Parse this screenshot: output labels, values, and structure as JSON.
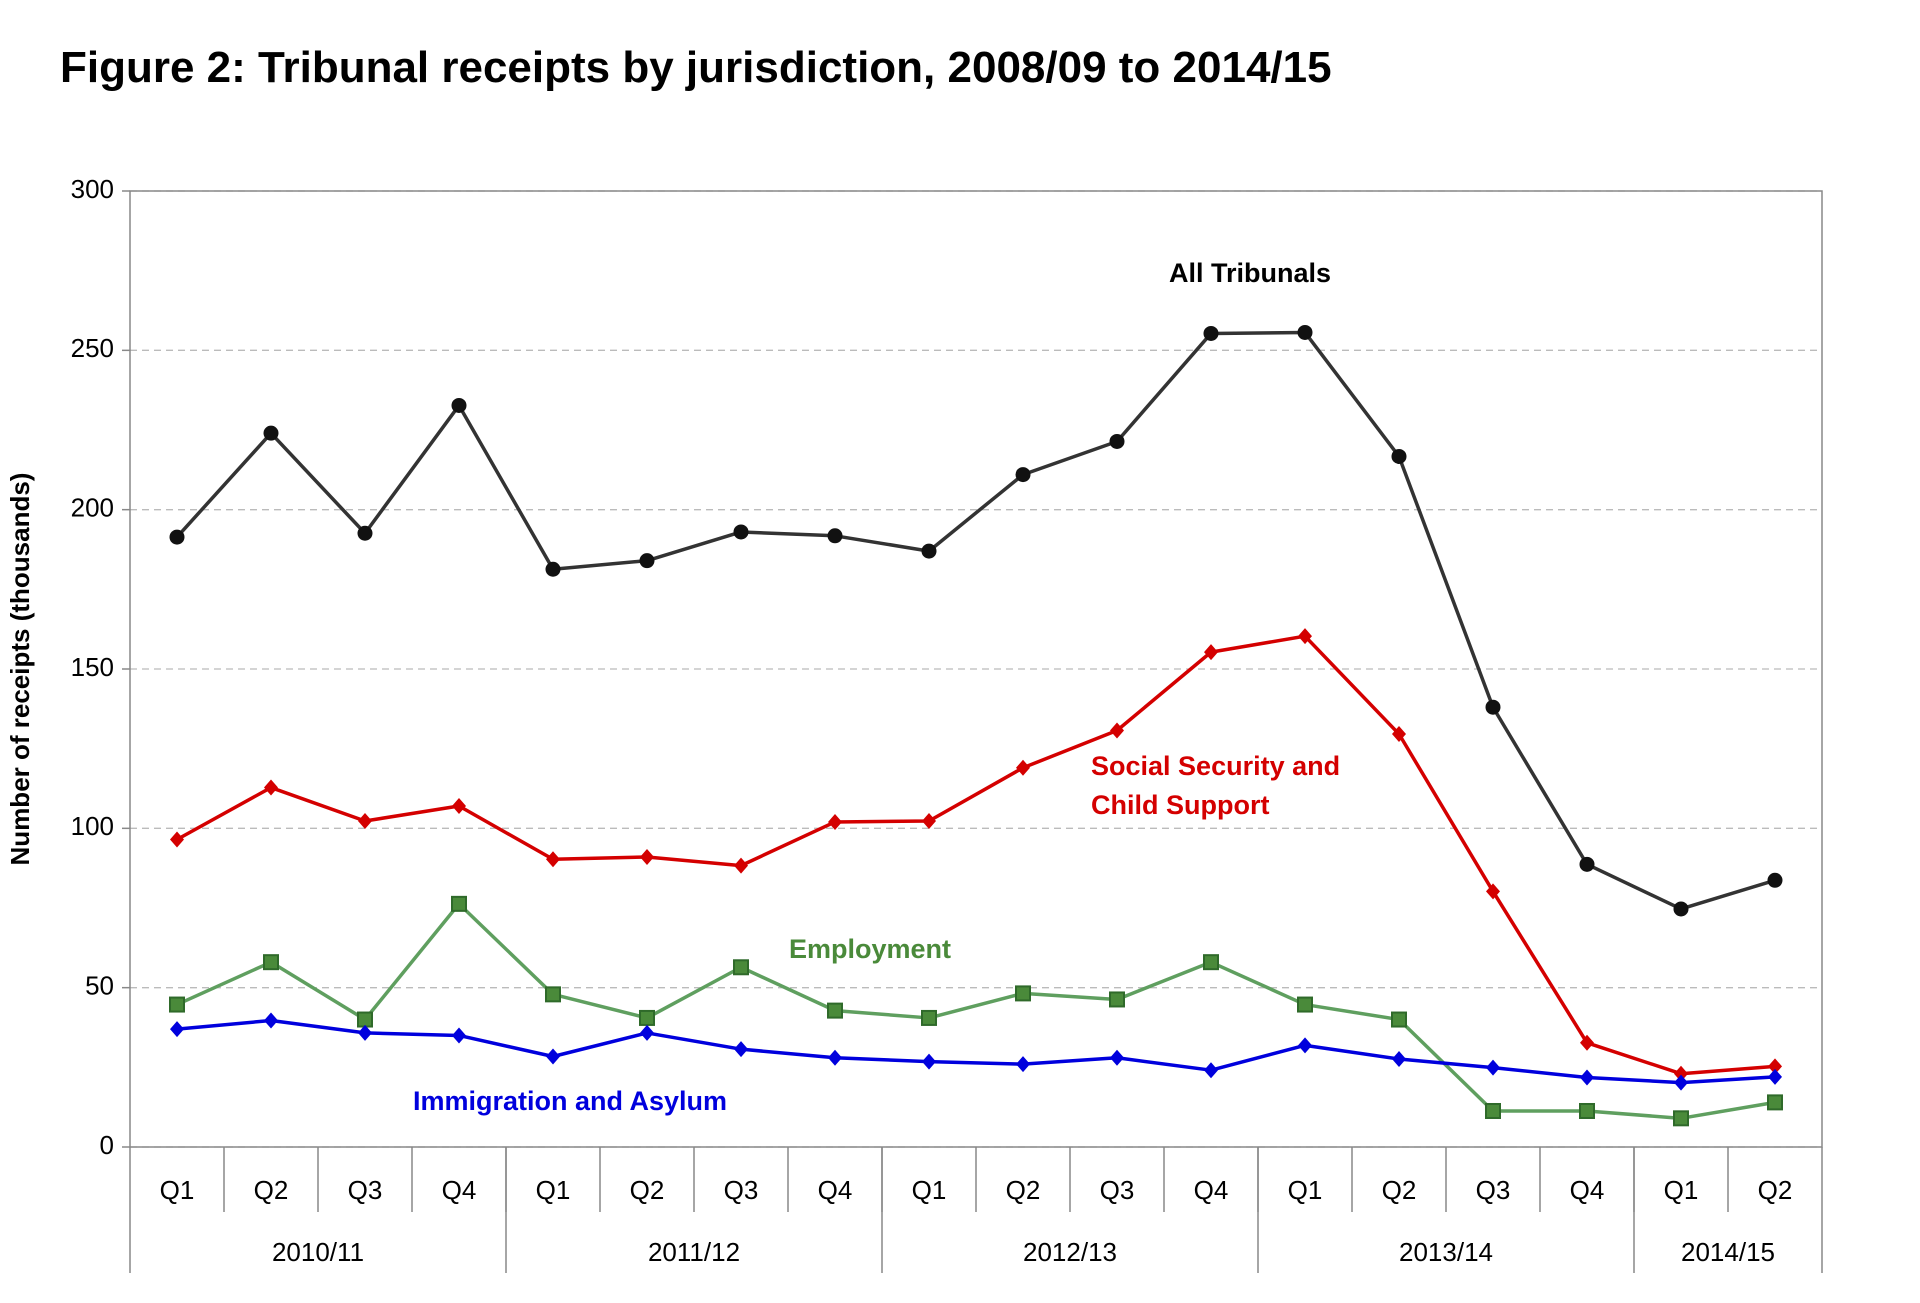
{
  "chart_data": {
    "type": "line",
    "title": "Figure 2: Tribunal receipts by jurisdiction, 2008/09 to 2014/15",
    "y_label": "Number of receipts (thousands)",
    "categories": [
      "Q1",
      "Q2",
      "Q3",
      "Q4",
      "Q1",
      "Q2",
      "Q3",
      "Q4",
      "Q1",
      "Q2",
      "Q3",
      "Q4",
      "Q1",
      "Q2",
      "Q3",
      "Q4",
      "Q1",
      "Q2"
    ],
    "category_groups": [
      {
        "label": "2010/11",
        "count": 4
      },
      {
        "label": "2011/12",
        "count": 4
      },
      {
        "label": "2012/13",
        "count": 4
      },
      {
        "label": "2013/14",
        "count": 4
      },
      {
        "label": "2014/15",
        "count": 2
      }
    ],
    "ylim": [
      0,
      300
    ],
    "yticks": [
      0,
      50,
      100,
      150,
      200,
      250,
      300
    ],
    "grid": true,
    "series": [
      {
        "name": "All Tribunals",
        "color": "#333333",
        "label_color": "#000000",
        "marker": "circle",
        "values": [
          191.4,
          224,
          192.6,
          232.7,
          181.3,
          184,
          193,
          191.8,
          187,
          211,
          221.4,
          255.3,
          255.6,
          216.7,
          138,
          88.7,
          74.7,
          83.7
        ]
      },
      {
        "name": "Social Security and Child Support",
        "color": "#d40000",
        "label_color": "#d40000",
        "marker": "diamond",
        "values": [
          96.5,
          112.8,
          102.3,
          107,
          90.3,
          91,
          88.3,
          102,
          102.3,
          119,
          130.7,
          155.3,
          160.3,
          129.6,
          80.2,
          32.7,
          23,
          25.3
        ]
      },
      {
        "name": "Employment",
        "color": "#5f9f5f",
        "label_color": "#4a8a3a",
        "marker": "square",
        "values": [
          44.7,
          58,
          40,
          76.3,
          47.9,
          40.5,
          56.4,
          42.8,
          40.5,
          48.2,
          46.3,
          58,
          44.7,
          40,
          11.3,
          11.3,
          9,
          14
        ]
      },
      {
        "name": "Immigration and Asylum",
        "color": "#0000dd",
        "label_color": "#0000dd",
        "marker": "diamond",
        "values": [
          37,
          39.7,
          35.8,
          35,
          28.4,
          35.8,
          30.7,
          28,
          26.8,
          26,
          28,
          24.1,
          31.9,
          27.6,
          24.9,
          21.8,
          20.2,
          22
        ]
      }
    ]
  }
}
